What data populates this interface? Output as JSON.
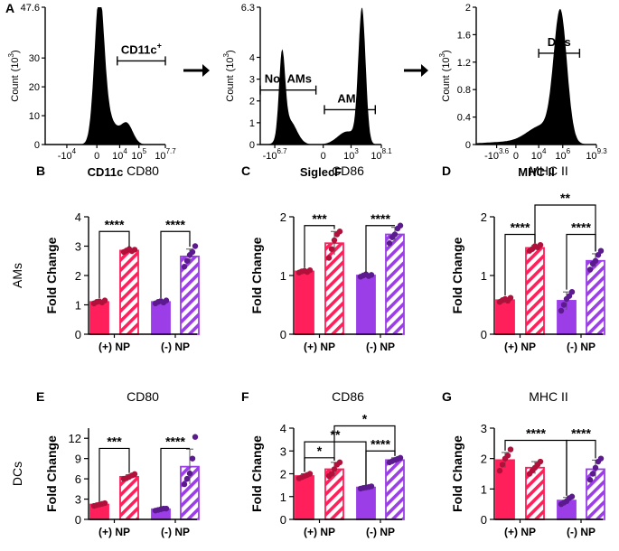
{
  "chart_data": {
    "colors": {
      "pos": "#ff1f5a",
      "neg": "#9b3ee8",
      "pos_pt": "#b0103a",
      "neg_pt": "#5b1a8e",
      "hatch_bg": "#ffffff"
    },
    "histograms": [
      {
        "id": "A1",
        "panel_label": "A",
        "xlabel": "CD11c",
        "ylabel": "Count",
        "ymult": "(10",
        "ymult_exp": "3",
        "ymult_close": ")",
        "yticks": [
          "0",
          "10",
          "20",
          "30",
          "47.6"
        ],
        "ytick_vals": [
          0,
          10,
          20,
          30,
          47.6
        ],
        "ymax": 47.6,
        "xticks": [
          {
            "b": "-10",
            "e": "4"
          },
          {
            "b": "10",
            "e": "4"
          },
          {
            "b": "10",
            "e": "5"
          },
          {
            "b": "10",
            "e": "7.7"
          }
        ],
        "xtick_pos": [
          0.18,
          0.62,
          0.78,
          1.0
        ],
        "zero_label": "0",
        "zero_pos": 0.43,
        "peaks": [
          {
            "c": 0.45,
            "w": 0.04,
            "h": 47.6
          },
          {
            "c": 0.52,
            "w": 0.07,
            "h": 9
          },
          {
            "c": 0.68,
            "w": 0.05,
            "h": 7
          }
        ],
        "gates": [
          {
            "label": "CD11c",
            "label_sup": "+",
            "x1": 0.6,
            "x2": 1.0,
            "y": 29
          }
        ]
      },
      {
        "id": "A2",
        "xlabel": "SiglecF",
        "ylabel": "Count",
        "ymult": "(10",
        "ymult_exp": "3",
        "ymult_close": ")",
        "yticks": [
          "0",
          "1",
          "2",
          "3",
          "4",
          "6.3"
        ],
        "ytick_vals": [
          0,
          1,
          2,
          3,
          4,
          6.3
        ],
        "ymax": 6.3,
        "xticks": [
          {
            "b": "-10",
            "e": "6.7"
          },
          {
            "b": "0",
            "e": ""
          },
          {
            "b": "10",
            "e": "3"
          },
          {
            "b": "10",
            "e": "8.1"
          }
        ],
        "xtick_pos": [
          0.12,
          0.52,
          0.75,
          1.0
        ],
        "peaks": [
          {
            "c": 0.18,
            "w": 0.025,
            "h": 3.7
          },
          {
            "c": 0.24,
            "w": 0.06,
            "h": 1.1
          },
          {
            "c": 0.84,
            "w": 0.03,
            "h": 6.1
          },
          {
            "c": 0.72,
            "w": 0.08,
            "h": 0.6
          }
        ],
        "gates": [
          {
            "label": "Not AMs",
            "x1": 0.0,
            "x2": 0.46,
            "y": 2.5
          },
          {
            "label": "AMs",
            "x1": 0.53,
            "x2": 0.95,
            "y": 1.6
          }
        ]
      },
      {
        "id": "A3",
        "xlabel": "MHC II",
        "ylabel": "Count",
        "ymult": "(10",
        "ymult_exp": "3",
        "ymult_close": ")",
        "yticks": [
          "0",
          "0.4",
          "0.8",
          "1.2",
          "1.6",
          "2"
        ],
        "ytick_vals": [
          0,
          0.4,
          0.8,
          1.2,
          1.6,
          2
        ],
        "ymax": 2,
        "xticks": [
          {
            "b": "-10",
            "e": "3.6"
          },
          {
            "b": "10",
            "e": "4"
          },
          {
            "b": "10",
            "e": "6"
          },
          {
            "b": "10",
            "e": "9.3"
          }
        ],
        "xtick_pos": [
          0.17,
          0.52,
          0.72,
          1.0
        ],
        "zero_label": "0",
        "zero_pos": 0.33,
        "peaks": [
          {
            "c": 0.7,
            "w": 0.055,
            "h": 1.85
          },
          {
            "c": 0.55,
            "w": 0.12,
            "h": 0.25
          },
          {
            "c": 0.3,
            "w": 0.25,
            "h": 0.04
          }
        ],
        "gates": [
          {
            "label": "DCs",
            "x1": 0.52,
            "x2": 0.86,
            "y": 1.33
          }
        ]
      }
    ],
    "bar_categories": [
      "(+) NP",
      "(-) NP"
    ],
    "bar_panels": [
      {
        "id": "B",
        "panel_label": "B",
        "title": "CD80",
        "ylabel": "Fold Change",
        "row_label": "AMs",
        "yticks": [
          0,
          1,
          2,
          3,
          4
        ],
        "ymax": 4,
        "bars": [
          {
            "v": 1.1,
            "err": 0.05,
            "pts": [
              1.05,
              1.1,
              1.12,
              1.08,
              1.15
            ]
          },
          {
            "v": 2.85,
            "err": 0.05,
            "pts": [
              2.8,
              2.85,
              2.9,
              2.83,
              2.88
            ]
          },
          {
            "v": 1.1,
            "err": 0.05,
            "pts": [
              1.05,
              1.1,
              1.13,
              1.08,
              1.15
            ]
          },
          {
            "v": 2.65,
            "err": 0.25,
            "pts": [
              2.3,
              2.5,
              2.7,
              2.8,
              3.0
            ]
          }
        ],
        "sig": [
          {
            "a": 0,
            "b": 1,
            "y": 3.5,
            "text": "****"
          },
          {
            "a": 2,
            "b": 3,
            "y": 3.5,
            "text": "****"
          }
        ]
      },
      {
        "id": "C",
        "panel_label": "C",
        "title": "CD86",
        "ylabel": "Fold Change",
        "yticks": [
          0,
          1,
          2
        ],
        "ymax": 2,
        "bars": [
          {
            "v": 1.07,
            "err": 0.02,
            "pts": [
              1.05,
              1.07,
              1.08,
              1.06,
              1.09
            ]
          },
          {
            "v": 1.55,
            "err": 0.2,
            "pts": [
              1.3,
              1.45,
              1.6,
              1.7,
              1.75
            ]
          },
          {
            "v": 1.0,
            "err": 0.02,
            "pts": [
              0.98,
              1.0,
              1.02,
              0.99,
              1.01
            ]
          },
          {
            "v": 1.7,
            "err": 0.12,
            "pts": [
              1.55,
              1.65,
              1.7,
              1.8,
              1.85
            ]
          }
        ],
        "sig": [
          {
            "a": 0,
            "b": 1,
            "y": 1.85,
            "text": "***"
          },
          {
            "a": 2,
            "b": 3,
            "y": 1.85,
            "text": "****"
          }
        ]
      },
      {
        "id": "D",
        "panel_label": "D",
        "title": "MHC II",
        "ylabel": "Fold Change",
        "yticks": [
          0,
          1,
          2
        ],
        "ymax": 2,
        "bars": [
          {
            "v": 0.58,
            "err": 0.04,
            "pts": [
              0.55,
              0.58,
              0.6,
              0.57,
              0.62
            ]
          },
          {
            "v": 1.47,
            "err": 0.04,
            "pts": [
              1.42,
              1.45,
              1.5,
              1.48,
              1.52
            ]
          },
          {
            "v": 0.57,
            "err": 0.15,
            "pts": [
              0.4,
              0.5,
              0.6,
              0.65,
              0.72
            ]
          },
          {
            "v": 1.25,
            "err": 0.12,
            "pts": [
              1.1,
              1.2,
              1.25,
              1.35,
              1.42
            ]
          }
        ],
        "sig": [
          {
            "a": 0,
            "b": 1,
            "y": 1.7,
            "text": "****"
          },
          {
            "a": 2,
            "b": 3,
            "y": 1.7,
            "text": "****"
          },
          {
            "a": 1,
            "b": 3,
            "y": 2.2,
            "text": "**"
          }
        ]
      },
      {
        "id": "E",
        "panel_label": "E",
        "title": "CD80",
        "ylabel": "Fold Change",
        "row_label": "DCs",
        "yticks": [
          0,
          3,
          6,
          9,
          12
        ],
        "ymax": 13.5,
        "bars": [
          {
            "v": 2.2,
            "err": 0.15,
            "pts": [
              2.0,
              2.1,
              2.2,
              2.3,
              2.4
            ]
          },
          {
            "v": 6.3,
            "err": 0.3,
            "pts": [
              6.0,
              6.1,
              6.3,
              6.5,
              6.7
            ]
          },
          {
            "v": 1.5,
            "err": 0.1,
            "pts": [
              1.3,
              1.4,
              1.5,
              1.6,
              1.6
            ]
          },
          {
            "v": 7.8,
            "err": 2.6,
            "pts": [
              5.2,
              6.0,
              6.8,
              9.0,
              12.2
            ]
          }
        ],
        "sig": [
          {
            "a": 0,
            "b": 1,
            "y": 10.5,
            "text": "***"
          },
          {
            "a": 2,
            "b": 3,
            "y": 10.5,
            "text": "****"
          }
        ]
      },
      {
        "id": "F",
        "panel_label": "F",
        "title": "CD86",
        "ylabel": "Fold Change",
        "yticks": [
          0,
          1,
          2,
          3,
          4
        ],
        "ymax": 4,
        "bars": [
          {
            "v": 1.9,
            "err": 0.1,
            "pts": [
              1.8,
              1.85,
              1.9,
              1.95,
              2.0
            ]
          },
          {
            "v": 2.2,
            "err": 0.3,
            "pts": [
              1.9,
              2.0,
              2.2,
              2.4,
              2.5
            ]
          },
          {
            "v": 1.4,
            "err": 0.04,
            "pts": [
              1.35,
              1.38,
              1.4,
              1.42,
              1.45
            ]
          },
          {
            "v": 2.6,
            "err": 0.1,
            "pts": [
              2.5,
              2.55,
              2.6,
              2.65,
              2.7
            ]
          }
        ],
        "sig": [
          {
            "a": 0,
            "b": 1,
            "y": 2.7,
            "text": "*"
          },
          {
            "a": 2,
            "b": 3,
            "y": 3.0,
            "text": "****"
          },
          {
            "a": 0,
            "b": 2,
            "y": 3.4,
            "text": "**"
          },
          {
            "a": 1,
            "b": 3,
            "y": 4.1,
            "text": "*"
          }
        ]
      },
      {
        "id": "G",
        "panel_label": "G",
        "title": "MHC II",
        "ylabel": "Fold Change",
        "yticks": [
          0,
          1,
          2,
          3
        ],
        "ymax": 3,
        "bars": [
          {
            "v": 1.95,
            "err": 0.25,
            "pts": [
              1.6,
              1.8,
              2.0,
              2.1,
              2.3
            ]
          },
          {
            "v": 1.7,
            "err": 0.2,
            "pts": [
              1.5,
              1.6,
              1.7,
              1.8,
              1.9
            ]
          },
          {
            "v": 0.62,
            "err": 0.1,
            "pts": [
              0.5,
              0.55,
              0.6,
              0.7,
              0.75
            ]
          },
          {
            "v": 1.65,
            "err": 0.3,
            "pts": [
              1.3,
              1.5,
              1.7,
              1.9,
              2.0
            ]
          }
        ],
        "sig": [
          {
            "a": 0,
            "b": 2,
            "y": 2.6,
            "text": "****"
          },
          {
            "a": 2,
            "b": 3,
            "y": 2.6,
            "text": "****"
          }
        ]
      }
    ]
  }
}
